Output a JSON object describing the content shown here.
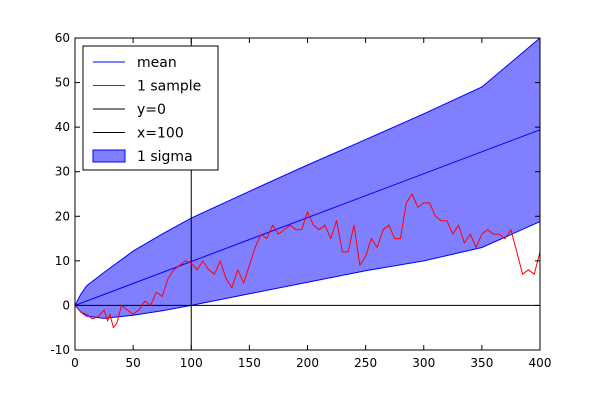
{
  "chart_data": {
    "type": "line",
    "title": "",
    "xlabel": "",
    "ylabel": "",
    "xlim": [
      0,
      400
    ],
    "ylim": [
      -10,
      60
    ],
    "xticks": [
      0,
      50,
      100,
      150,
      200,
      250,
      300,
      350,
      400
    ],
    "yticks": [
      -10,
      0,
      10,
      20,
      30,
      40,
      50,
      60
    ],
    "grid": false,
    "legend_position": "top-left",
    "series": [
      {
        "name": "mean",
        "kind": "line",
        "color": "#0000ff",
        "x": [
          0,
          400
        ],
        "y": [
          0,
          39.4
        ]
      },
      {
        "name": "1 sample",
        "kind": "line",
        "color": "#ff0000",
        "x": [
          0,
          5,
          10,
          15,
          20,
          25,
          28,
          30,
          33,
          36,
          40,
          45,
          50,
          55,
          60,
          65,
          70,
          75,
          80,
          85,
          90,
          95,
          100,
          105,
          110,
          115,
          120,
          125,
          130,
          135,
          140,
          145,
          150,
          155,
          160,
          165,
          170,
          175,
          180,
          185,
          190,
          195,
          200,
          205,
          210,
          215,
          220,
          225,
          230,
          235,
          240,
          245,
          250,
          255,
          260,
          265,
          270,
          275,
          280,
          285,
          290,
          295,
          300,
          305,
          310,
          315,
          320,
          325,
          330,
          335,
          340,
          345,
          350,
          355,
          360,
          365,
          370,
          375,
          380,
          385,
          390,
          395,
          400
        ],
        "y": [
          0,
          -1.5,
          -2,
          -3,
          -2.5,
          -1,
          -3.5,
          -2,
          -5,
          -4,
          0,
          -1,
          -2,
          -1,
          1,
          0,
          3,
          2,
          6,
          8,
          9,
          10,
          9.5,
          8,
          10,
          8,
          7,
          10,
          6,
          4,
          8,
          5,
          9,
          13,
          16,
          15,
          18,
          16,
          17,
          18,
          17,
          17,
          21,
          18,
          17,
          18,
          15,
          19,
          12,
          12,
          18,
          9,
          11,
          15,
          13,
          17,
          18,
          15,
          15,
          23,
          25,
          22,
          23,
          23,
          20,
          19,
          19,
          16,
          18,
          14,
          16,
          13,
          16,
          17,
          16,
          16,
          15,
          17,
          12,
          7,
          8,
          7,
          12
        ]
      },
      {
        "name": "y=0",
        "kind": "hline",
        "color": "#000000",
        "y": 0
      },
      {
        "name": "x=100",
        "kind": "vline",
        "color": "#000000",
        "x": 100
      },
      {
        "name": "1 sigma",
        "kind": "band",
        "color": "#0000ff",
        "opacity": 0.5,
        "x": [
          0,
          5,
          10,
          25,
          50,
          75,
          100,
          150,
          200,
          250,
          300,
          350,
          400
        ],
        "upper": [
          0,
          2.5,
          4.4,
          7.4,
          12.2,
          16.0,
          19.6,
          25.6,
          31.5,
          37.2,
          43.0,
          49.0,
          60.0
        ],
        "lower": [
          0,
          -1.5,
          -2.4,
          -2.9,
          -2.2,
          -1.2,
          0,
          2.6,
          5.2,
          7.8,
          10.0,
          13.0,
          18.8
        ]
      }
    ]
  }
}
